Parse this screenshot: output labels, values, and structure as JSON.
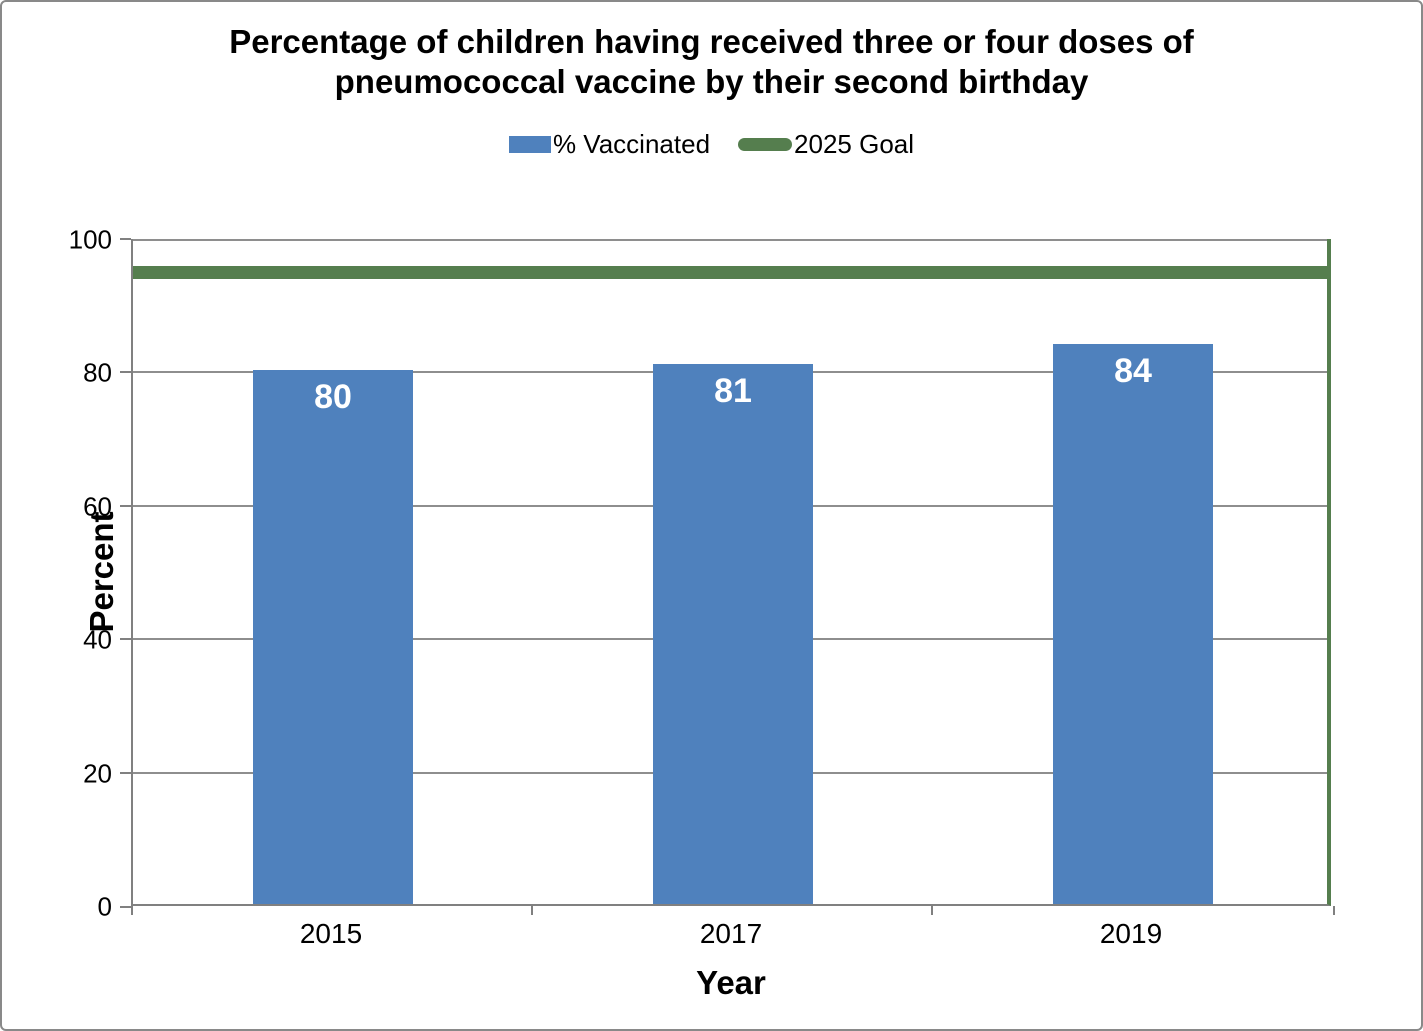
{
  "chart_data": {
    "type": "bar",
    "title": "Percentage of children having received three or four doses of pneumococcal vaccine by their second birthday",
    "xlabel": "Year",
    "ylabel": "Percent",
    "categories": [
      "2015",
      "2017",
      "2019"
    ],
    "series": [
      {
        "name": "% Vaccinated",
        "type": "bar",
        "values": [
          80,
          81,
          84
        ],
        "color": "#4F81BD"
      },
      {
        "name": "2025 Goal",
        "type": "line",
        "value": 95,
        "color": "#557E4E"
      }
    ],
    "data_labels": [
      "80",
      "81",
      "84"
    ],
    "ylim": [
      0,
      100
    ],
    "yticks": [
      0,
      20,
      40,
      60,
      80,
      100
    ],
    "grid": true,
    "legend_position": "top",
    "bar_label_color": "#FFFFFF",
    "gridline_color": "#8E8E8E",
    "axis_color": "#808080"
  }
}
